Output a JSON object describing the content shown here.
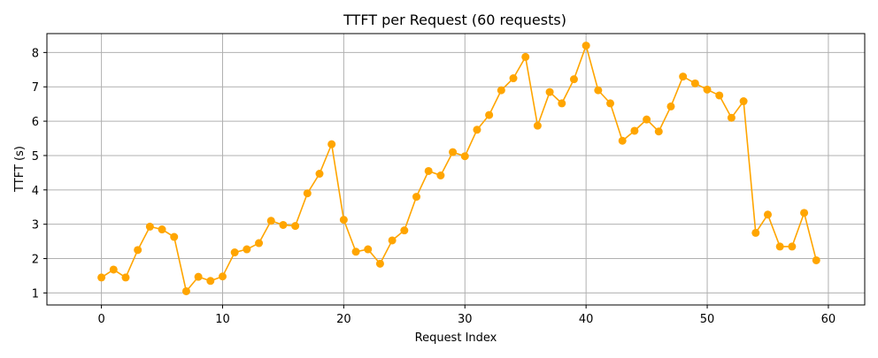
{
  "chart_data": {
    "type": "line",
    "title": "TTFT per Request (60 requests)",
    "xlabel": "Request Index",
    "ylabel": "TTFT (s)",
    "xlim": [
      -4.5,
      63
    ],
    "ylim": [
      0.65,
      8.55
    ],
    "xticks": [
      0,
      10,
      20,
      30,
      40,
      50,
      60
    ],
    "yticks": [
      1,
      2,
      3,
      4,
      5,
      6,
      7,
      8
    ],
    "grid": true,
    "color": "#ffa500",
    "marker": "circle",
    "x": [
      0,
      1,
      2,
      3,
      4,
      5,
      6,
      7,
      8,
      9,
      10,
      11,
      12,
      13,
      14,
      15,
      16,
      17,
      18,
      19,
      20,
      21,
      22,
      23,
      24,
      25,
      26,
      27,
      28,
      29,
      30,
      31,
      32,
      33,
      34,
      35,
      36,
      37,
      38,
      39,
      40,
      41,
      42,
      43,
      44,
      45,
      46,
      47,
      48,
      49,
      50,
      51,
      52,
      53,
      54,
      55,
      56,
      57,
      58,
      59
    ],
    "y": [
      1.45,
      1.68,
      1.45,
      2.25,
      2.93,
      2.85,
      2.63,
      1.05,
      1.47,
      1.35,
      1.48,
      2.18,
      2.27,
      2.45,
      3.1,
      2.98,
      2.95,
      3.9,
      4.47,
      5.33,
      3.13,
      2.2,
      2.27,
      1.85,
      2.53,
      2.82,
      3.8,
      4.55,
      4.42,
      5.1,
      4.98,
      5.75,
      6.18,
      6.9,
      7.25,
      7.87,
      5.87,
      6.85,
      6.52,
      7.22,
      8.2,
      6.9,
      6.52,
      5.43,
      5.72,
      6.05,
      5.7,
      6.43,
      7.3,
      7.1,
      6.92,
      6.75,
      6.1,
      6.58,
      2.75,
      3.28,
      2.35,
      2.35,
      3.33,
      1.95
    ]
  }
}
